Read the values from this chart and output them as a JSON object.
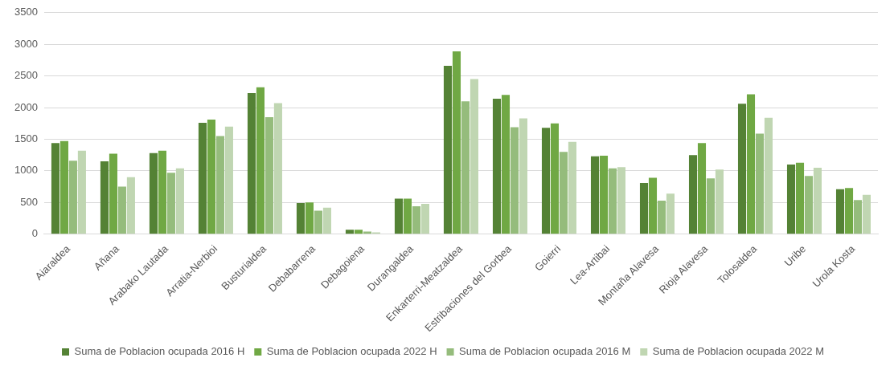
{
  "chart_data": {
    "type": "bar",
    "categories": [
      "Aiaraldea",
      "Añana",
      "Arabako Lautada",
      "Arratia-Nerbioi",
      "Busturialdea",
      "Debabarrena",
      "Debagoiena",
      "Durangaldea",
      "Enkarterri-Meatzaldea",
      "Estribaciones del Gorbea",
      "Goierri",
      "Lea-Artibai",
      "Montaña Alavesa",
      "Rioja Alavesa",
      "Tolosaldea",
      "Uribe",
      "Urola Kosta"
    ],
    "series": [
      {
        "name": "Suma de Poblacion ocupada 2016 H",
        "color": "#548235",
        "values": [
          1440,
          1150,
          1280,
          1760,
          2230,
          490,
          70,
          560,
          2660,
          2140,
          1680,
          1230,
          810,
          1250,
          2060,
          1100,
          710
        ]
      },
      {
        "name": "Suma de Poblacion ocupada 2022 H",
        "color": "#70a844",
        "values": [
          1470,
          1270,
          1320,
          1810,
          2320,
          500,
          70,
          560,
          2890,
          2200,
          1750,
          1240,
          890,
          1440,
          2210,
          1130,
          730
        ]
      },
      {
        "name": "Suma de Poblacion ocupada 2016 M",
        "color": "#95bc7c",
        "values": [
          1160,
          750,
          970,
          1550,
          1850,
          370,
          40,
          440,
          2100,
          1690,
          1300,
          1040,
          530,
          880,
          1590,
          920,
          540
        ]
      },
      {
        "name": "Suma de Poblacion ocupada 2022 M",
        "color": "#c0d6b2",
        "values": [
          1320,
          900,
          1040,
          1700,
          2070,
          420,
          30,
          480,
          2450,
          1830,
          1460,
          1060,
          640,
          1020,
          1840,
          1050,
          620
        ]
      }
    ],
    "ylim": [
      0,
      3500
    ],
    "yticks": [
      0,
      500,
      1000,
      1500,
      2000,
      2500,
      3000,
      3500
    ],
    "grid": "y",
    "legend": "bottom"
  }
}
